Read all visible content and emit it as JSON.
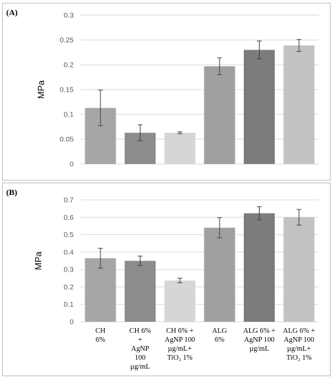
{
  "chart_data": [
    {
      "panel_label": "(A)",
      "type": "bar",
      "ylabel": "MPa",
      "ylim": [
        0,
        0.3
      ],
      "yticks": [
        "0",
        "0.05",
        "0.1",
        "0.15",
        "0.2",
        "0.25",
        "0.3"
      ],
      "grid": true,
      "categories": [
        "",
        "",
        "",
        "",
        "",
        ""
      ],
      "values": [
        0.113,
        0.063,
        0.063,
        0.197,
        0.23,
        0.239
      ],
      "errors": [
        0.036,
        0.016,
        0.002,
        0.017,
        0.018,
        0.012
      ],
      "colors": [
        "#a6a6a6",
        "#8c8c8c",
        "#d6d6d6",
        "#a0a0a0",
        "#7c7c7c",
        "#c2c2c2"
      ]
    },
    {
      "panel_label": "(B)",
      "type": "bar",
      "ylabel": "MPa",
      "ylim": [
        0,
        0.7
      ],
      "yticks": [
        "0",
        "0.1",
        "0.2",
        "0.3",
        "0.4",
        "0.5",
        "0.6",
        "0.7"
      ],
      "grid": true,
      "categories": [
        [
          "CH",
          "6%"
        ],
        [
          "CH 6%",
          "+",
          "AgNP",
          "100",
          "µg/mL"
        ],
        [
          "CH 6% +",
          "AgNP 100",
          "µg/mL+",
          "TiO₂ 1%"
        ],
        [
          "ALG",
          "6%"
        ],
        [
          "ALG 6% +",
          "AgNP 100",
          "µg/mL"
        ],
        [
          "ALG 6% +",
          "AgNP 100",
          "µg/mL+",
          "TiO₂ 1%"
        ]
      ],
      "values": [
        0.365,
        0.35,
        0.237,
        0.54,
        0.623,
        0.6
      ],
      "errors": [
        0.057,
        0.027,
        0.013,
        0.058,
        0.038,
        0.045
      ],
      "colors": [
        "#a6a6a6",
        "#8c8c8c",
        "#d6d6d6",
        "#a0a0a0",
        "#7c7c7c",
        "#c2c2c2"
      ]
    }
  ]
}
